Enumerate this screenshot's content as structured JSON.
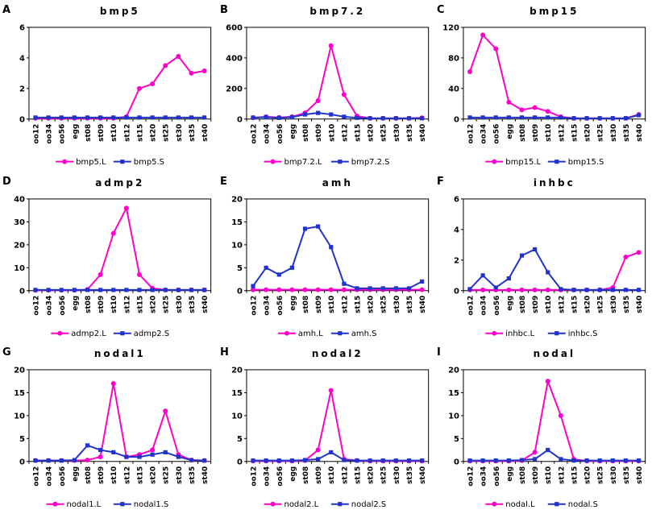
{
  "figure": {
    "background_color": "#ffffff",
    "series_colors": {
      "L": "#ff00cc",
      "S": "#2233cc"
    },
    "panel_labels": [
      "A",
      "B",
      "C",
      "D",
      "E",
      "F",
      "G",
      "H",
      "I"
    ]
  },
  "chart_data": [
    {
      "type": "line",
      "panel": "A",
      "title": "bmp5",
      "xlabel": "",
      "ylabel": "",
      "ylim": [
        0,
        6
      ],
      "yticks": [
        0,
        2,
        4,
        6
      ],
      "grid": false,
      "legend_position": "bottom",
      "categories": [
        "oo12",
        "oo34",
        "oo56",
        "egg",
        "st08",
        "st09",
        "st10",
        "st12",
        "st15",
        "st20",
        "st25",
        "st30",
        "st35",
        "st40"
      ],
      "series": [
        {
          "name": "bmp5.L",
          "color": "#ff00cc",
          "marker": "circle",
          "values": [
            0.05,
            0.05,
            0.05,
            0.05,
            0.05,
            0.05,
            0.05,
            0.15,
            2.0,
            2.3,
            3.5,
            4.1,
            3.0,
            3.15
          ]
        },
        {
          "name": "bmp5.S",
          "color": "#2233cc",
          "marker": "square",
          "values": [
            0.1,
            0.1,
            0.1,
            0.1,
            0.1,
            0.1,
            0.1,
            0.1,
            0.1,
            0.1,
            0.1,
            0.1,
            0.1,
            0.1
          ]
        }
      ]
    },
    {
      "type": "line",
      "panel": "B",
      "title": "bmp7.2",
      "xlabel": "",
      "ylabel": "",
      "ylim": [
        0,
        600
      ],
      "yticks": [
        0,
        200,
        400,
        600
      ],
      "grid": false,
      "legend_position": "bottom",
      "categories": [
        "oo12",
        "oo34",
        "oo56",
        "egg",
        "st08",
        "st09",
        "st10",
        "st12",
        "st15",
        "st20",
        "st25",
        "st30",
        "st35",
        "st40"
      ],
      "series": [
        {
          "name": "bmp7.2.L",
          "color": "#ff00cc",
          "marker": "circle",
          "values": [
            8,
            15,
            10,
            15,
            40,
            120,
            480,
            160,
            20,
            5,
            5,
            5,
            5,
            8
          ]
        },
        {
          "name": "bmp7.2.S",
          "color": "#2233cc",
          "marker": "square",
          "values": [
            10,
            12,
            8,
            12,
            30,
            40,
            30,
            15,
            8,
            5,
            5,
            5,
            5,
            5
          ]
        }
      ]
    },
    {
      "type": "line",
      "panel": "C",
      "title": "bmp15",
      "xlabel": "",
      "ylabel": "",
      "ylim": [
        0,
        120
      ],
      "yticks": [
        0,
        40,
        80,
        120
      ],
      "grid": false,
      "legend_position": "bottom",
      "categories": [
        "oo12",
        "oo34",
        "oo56",
        "egg",
        "st08",
        "st09",
        "st10",
        "st12",
        "st15",
        "st20",
        "st25",
        "st30",
        "st35",
        "st40"
      ],
      "series": [
        {
          "name": "bmp15.L",
          "color": "#ff00cc",
          "marker": "circle",
          "values": [
            62,
            110,
            92,
            22,
            12,
            15,
            10,
            3,
            1,
            1,
            1,
            1,
            1,
            6
          ]
        },
        {
          "name": "bmp15.S",
          "color": "#2233cc",
          "marker": "square",
          "values": [
            2,
            2,
            2,
            2,
            2,
            2,
            2,
            2,
            1,
            1,
            1,
            1,
            1,
            5
          ]
        }
      ]
    },
    {
      "type": "line",
      "panel": "D",
      "title": "admp2",
      "xlabel": "",
      "ylabel": "",
      "ylim": [
        0,
        40
      ],
      "yticks": [
        0,
        10,
        20,
        30,
        40
      ],
      "grid": false,
      "legend_position": "bottom",
      "categories": [
        "oo12",
        "oo34",
        "oo56",
        "egg",
        "st08",
        "st09",
        "st10",
        "st12",
        "st15",
        "st20",
        "st25",
        "st30",
        "st35",
        "st40"
      ],
      "series": [
        {
          "name": "admp2.L",
          "color": "#ff00cc",
          "marker": "circle",
          "values": [
            0.2,
            0.2,
            0.2,
            0.2,
            0.5,
            7,
            25,
            36,
            7,
            1,
            0.3,
            0.3,
            0.3,
            0.3
          ]
        },
        {
          "name": "admp2.S",
          "color": "#2233cc",
          "marker": "square",
          "values": [
            0.3,
            0.3,
            0.3,
            0.3,
            0.3,
            0.3,
            0.3,
            0.3,
            0.3,
            0.3,
            0.3,
            0.3,
            0.3,
            0.3
          ]
        }
      ]
    },
    {
      "type": "line",
      "panel": "E",
      "title": "amh",
      "xlabel": "",
      "ylabel": "",
      "ylim": [
        0,
        20
      ],
      "yticks": [
        0,
        5,
        10,
        15,
        20
      ],
      "grid": false,
      "legend_position": "bottom",
      "categories": [
        "oo12",
        "oo34",
        "oo56",
        "egg",
        "st08",
        "st09",
        "st10",
        "st12",
        "st15",
        "st20",
        "st25",
        "st30",
        "st35",
        "st40"
      ],
      "series": [
        {
          "name": "amh.L",
          "color": "#ff00cc",
          "marker": "circle",
          "values": [
            0.2,
            0.2,
            0.2,
            0.2,
            0.2,
            0.2,
            0.2,
            0.2,
            0.2,
            0.2,
            0.2,
            0.2,
            0.2,
            0.2
          ]
        },
        {
          "name": "amh.S",
          "color": "#2233cc",
          "marker": "square",
          "values": [
            1,
            5,
            3.5,
            5,
            13.5,
            14,
            9.5,
            1.5,
            0.5,
            0.5,
            0.5,
            0.5,
            0.5,
            2
          ]
        }
      ]
    },
    {
      "type": "line",
      "panel": "F",
      "title": "inhbc",
      "xlabel": "",
      "ylabel": "",
      "ylim": [
        0,
        6
      ],
      "yticks": [
        0,
        2,
        4,
        6
      ],
      "grid": false,
      "legend_position": "bottom",
      "categories": [
        "oo12",
        "oo34",
        "oo56",
        "egg",
        "st08",
        "st09",
        "st10",
        "st12",
        "st15",
        "st20",
        "st25",
        "st30",
        "st35",
        "st40"
      ],
      "series": [
        {
          "name": "inhbc.L",
          "color": "#ff00cc",
          "marker": "circle",
          "values": [
            0.05,
            0.05,
            0.05,
            0.05,
            0.05,
            0.05,
            0.05,
            0.05,
            0.05,
            0.05,
            0.05,
            0.2,
            2.2,
            2.5
          ]
        },
        {
          "name": "inhbc.S",
          "color": "#2233cc",
          "marker": "square",
          "values": [
            0.1,
            1.0,
            0.2,
            0.8,
            2.3,
            2.7,
            1.2,
            0.1,
            0.05,
            0.05,
            0.05,
            0.05,
            0.05,
            0.05
          ]
        }
      ]
    },
    {
      "type": "line",
      "panel": "G",
      "title": "nodal1",
      "xlabel": "",
      "ylabel": "",
      "ylim": [
        0,
        20
      ],
      "yticks": [
        0,
        5,
        10,
        15,
        20
      ],
      "grid": false,
      "legend_position": "bottom",
      "categories": [
        "oo12",
        "oo34",
        "oo56",
        "egg",
        "st08",
        "st09",
        "st10",
        "st12",
        "st15",
        "st20",
        "st25",
        "st30",
        "st35",
        "st40"
      ],
      "series": [
        {
          "name": "nodal1.L",
          "color": "#ff00cc",
          "marker": "circle",
          "values": [
            0.2,
            0.2,
            0.2,
            0.2,
            0.3,
            1,
            17,
            1,
            1.5,
            2.5,
            11,
            1.5,
            0.3,
            0.2
          ]
        },
        {
          "name": "nodal1.S",
          "color": "#2233cc",
          "marker": "square",
          "values": [
            0.2,
            0.2,
            0.2,
            0.3,
            3.5,
            2.5,
            2,
            1,
            1,
            1.5,
            2,
            1,
            0.3,
            0.2
          ]
        }
      ]
    },
    {
      "type": "line",
      "panel": "H",
      "title": "nodal2",
      "xlabel": "",
      "ylabel": "",
      "ylim": [
        0,
        20
      ],
      "yticks": [
        0,
        5,
        10,
        15,
        20
      ],
      "grid": false,
      "legend_position": "bottom",
      "categories": [
        "oo12",
        "oo34",
        "oo56",
        "egg",
        "st08",
        "st09",
        "st10",
        "st12",
        "st15",
        "st20",
        "st25",
        "st30",
        "st35",
        "st40"
      ],
      "series": [
        {
          "name": "nodal2.L",
          "color": "#ff00cc",
          "marker": "circle",
          "values": [
            0.1,
            0.1,
            0.1,
            0.1,
            0.2,
            2.5,
            15.5,
            0.5,
            0.2,
            0.1,
            0.1,
            0.1,
            0.1,
            0.1
          ]
        },
        {
          "name": "nodal2.S",
          "color": "#2233cc",
          "marker": "square",
          "values": [
            0.2,
            0.2,
            0.2,
            0.2,
            0.3,
            0.5,
            2,
            0.3,
            0.2,
            0.2,
            0.2,
            0.2,
            0.2,
            0.2
          ]
        }
      ]
    },
    {
      "type": "line",
      "panel": "I",
      "title": "nodal",
      "xlabel": "",
      "ylabel": "",
      "ylim": [
        0,
        20
      ],
      "yticks": [
        0,
        5,
        10,
        15,
        20
      ],
      "grid": false,
      "legend_position": "bottom",
      "categories": [
        "oo12",
        "oo34",
        "oo56",
        "egg",
        "st08",
        "st09",
        "st10",
        "st12",
        "st15",
        "st20",
        "st25",
        "st30",
        "st35",
        "st40"
      ],
      "series": [
        {
          "name": "nodal.L",
          "color": "#ff00cc",
          "marker": "circle",
          "values": [
            0.1,
            0.1,
            0.1,
            0.1,
            0.2,
            2,
            17.5,
            10,
            0.5,
            0.1,
            0.1,
            0.1,
            0.1,
            0.1
          ]
        },
        {
          "name": "nodal.S",
          "color": "#2233cc",
          "marker": "square",
          "values": [
            0.2,
            0.2,
            0.2,
            0.2,
            0.3,
            0.5,
            2.5,
            0.5,
            0.2,
            0.2,
            0.2,
            0.2,
            0.2,
            0.2
          ]
        }
      ]
    }
  ]
}
